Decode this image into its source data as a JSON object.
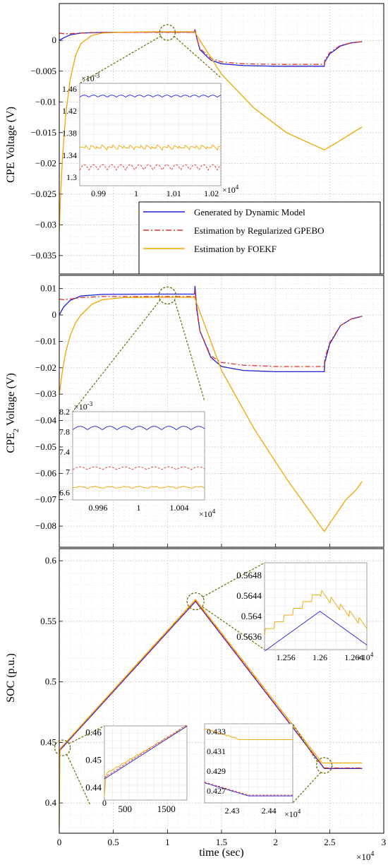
{
  "colors": {
    "generated": "#1f1fd6",
    "gpebo": "#e0302a",
    "foekf": "#f0a500",
    "zoom": "#6b6b00"
  },
  "legend": {
    "generated": "Generated by Dynamic Model",
    "gpebo": "Estimation by Regularized GPEBO",
    "foekf": "Estimation by FOEKF"
  },
  "xaxis": {
    "label": "time (sec)",
    "exponent": "×10",
    "exponent_power": "4",
    "ticks": [
      "0",
      "0.5",
      "1",
      "1.5",
      "2",
      "2.5",
      "3"
    ]
  },
  "chart_data": [
    {
      "type": "line",
      "ylabel": "CPE Voltage (V)",
      "ylim": [
        -0.038,
        0.006
      ],
      "yticks": [
        0,
        -0.005,
        -0.01,
        -0.015,
        -0.02,
        -0.025,
        -0.03,
        -0.035
      ],
      "ytick_labels": [
        "0",
        "−0.005",
        "−0.01",
        "−0.015",
        "−0.02",
        "−0.025",
        "−0.03",
        "−0.035"
      ],
      "xlim": [
        0,
        30000
      ],
      "grid": true,
      "legend_position": "lower-right",
      "series": [
        {
          "name": "Generated by Dynamic Model",
          "x": [
            0,
            400,
            1000,
            2000,
            4000,
            8000,
            12500,
            12550,
            12700,
            13000,
            14000,
            15000,
            17000,
            20000,
            24500,
            24550,
            25000,
            26000,
            27000,
            28000
          ],
          "y": [
            0,
            0.0004,
            0.0009,
            0.0012,
            0.0013,
            0.00135,
            0.00135,
            0.0018,
            0.0005,
            -0.0015,
            -0.0032,
            -0.0038,
            -0.0041,
            -0.0042,
            -0.0042,
            -0.0035,
            -0.0022,
            -0.0009,
            -0.0004,
            -0.0002
          ]
        },
        {
          "name": "Estimation by Regularized GPEBO",
          "x": [
            0,
            400,
            1000,
            2000,
            4000,
            8000,
            12500,
            12550,
            12700,
            13000,
            14000,
            15000,
            17000,
            20000,
            24500,
            24550,
            25000,
            26000,
            27000,
            28000
          ],
          "y": [
            0.0012,
            0.0011,
            0.0011,
            0.0012,
            0.0013,
            0.0013,
            0.0013,
            0.0017,
            0.0004,
            -0.0013,
            -0.0029,
            -0.0035,
            -0.0038,
            -0.0039,
            -0.0039,
            -0.0032,
            -0.002,
            -0.0008,
            -0.0004,
            -0.0002
          ]
        },
        {
          "name": "Estimation by FOEKF",
          "x": [
            0,
            100,
            300,
            600,
            1000,
            1500,
            2000,
            3000,
            4000,
            6000,
            9000,
            12500,
            15000,
            18000,
            21000,
            24500,
            25500,
            26500,
            27500,
            28000
          ],
          "y": [
            -0.031,
            -0.026,
            -0.019,
            -0.012,
            -0.0065,
            -0.0025,
            -0.0005,
            0.0008,
            0.0012,
            0.00135,
            0.0014,
            0.0014,
            -0.0055,
            -0.011,
            -0.015,
            -0.0178,
            -0.0168,
            -0.0157,
            -0.0146,
            -0.0141
          ]
        }
      ],
      "inset": {
        "exponent": "×10",
        "exponent_power": "-3",
        "x_exponent": "×10",
        "x_exponent_power": "4",
        "xlim": [
          0.985,
          1.0225
        ],
        "ylim": [
          1.285,
          1.47
        ],
        "xticks": [
          0.99,
          1,
          1.01,
          1.02
        ],
        "xtick_labels": [
          "0.99",
          "1",
          "1.01",
          "1.02"
        ],
        "yticks": [
          1.3,
          1.34,
          1.38,
          1.42,
          1.46
        ],
        "ytick_labels": [
          "1.3",
          "1.34",
          "1.38",
          "1.42",
          "1.46"
        ],
        "levels": {
          "generated": 1.445,
          "gpebo": 1.313,
          "foekf": 1.352
        },
        "amplitudes": {
          "generated": 0.006,
          "gpebo": 0.005,
          "foekf": 0.003
        }
      }
    },
    {
      "type": "line",
      "ylabel": "CPE",
      "ylabel_sub": "2",
      "ylabel_suffix": " Voltage (V)",
      "ylim": [
        -0.088,
        0.015
      ],
      "yticks": [
        0.01,
        0,
        -0.01,
        -0.02,
        -0.03,
        -0.04,
        -0.05,
        -0.06,
        -0.07,
        -0.08
      ],
      "ytick_labels": [
        "0.01",
        "0",
        "−0.01",
        "−0.02",
        "−0.03",
        "−0.04",
        "−0.05",
        "−0.06",
        "−0.07",
        "−0.08"
      ],
      "xlim": [
        0,
        30000
      ],
      "grid": true,
      "series": [
        {
          "name": "Generated by Dynamic Model",
          "x": [
            0,
            400,
            1000,
            2000,
            4000,
            8000,
            12500,
            12550,
            12700,
            13000,
            14000,
            15000,
            17000,
            20000,
            24500,
            24550,
            25000,
            26000,
            27000,
            28000
          ],
          "y": [
            0,
            0.003,
            0.0055,
            0.0072,
            0.0078,
            0.0079,
            0.0079,
            0.011,
            0.003,
            -0.006,
            -0.016,
            -0.0195,
            -0.021,
            -0.0215,
            -0.0215,
            -0.018,
            -0.011,
            -0.004,
            -0.0015,
            -0.0005
          ]
        },
        {
          "name": "Estimation by Regularized GPEBO",
          "x": [
            0,
            400,
            1000,
            2000,
            4000,
            8000,
            12500,
            12550,
            12700,
            13000,
            14000,
            15000,
            17000,
            20000,
            24500,
            24550,
            25000,
            26000,
            27000,
            28000
          ],
          "y": [
            0.006,
            0.0058,
            0.006,
            0.0066,
            0.007,
            0.007,
            0.007,
            0.0095,
            0.002,
            -0.006,
            -0.0155,
            -0.018,
            -0.019,
            -0.0195,
            -0.0195,
            -0.0165,
            -0.0105,
            -0.004,
            -0.0015,
            -0.0005
          ]
        },
        {
          "name": "Estimation by FOEKF",
          "x": [
            0,
            100,
            300,
            600,
            1000,
            1500,
            2000,
            3000,
            4000,
            6000,
            9000,
            12500,
            15000,
            18000,
            21000,
            24500,
            25500,
            26500,
            27500,
            28000
          ],
          "y": [
            -0.03,
            -0.027,
            -0.021,
            -0.014,
            -0.008,
            -0.003,
            0.0,
            0.004,
            0.0058,
            0.0066,
            0.0067,
            0.0067,
            -0.021,
            -0.043,
            -0.062,
            -0.082,
            -0.076,
            -0.07,
            -0.066,
            -0.063
          ]
        }
      ],
      "inset": {
        "exponent": "×10",
        "exponent_power": "-3",
        "x_exponent": "×10",
        "x_exponent_power": "4",
        "xlim": [
          0.9935,
          1.0065
        ],
        "ylim": [
          6.45,
          8.2
        ],
        "xticks": [
          0.996,
          1,
          1.004
        ],
        "xtick_labels": [
          "0.996",
          "1",
          "1.004"
        ],
        "yticks": [
          6.6,
          7,
          7.4,
          7.8,
          8.2
        ],
        "ytick_labels": [
          "6.6",
          "7",
          "7.4",
          "7.8",
          "8.2"
        ],
        "levels": {
          "generated": 7.84,
          "gpebo": 7.05,
          "foekf": 6.68
        },
        "amplitudes": {
          "generated": 0.04,
          "gpebo": 0.03,
          "foekf": 0.015
        }
      }
    },
    {
      "type": "line",
      "ylabel": "SOC (p.u.)",
      "ylim": [
        0.375,
        0.61
      ],
      "yticks": [
        0.4,
        0.45,
        0.5,
        0.55,
        0.6
      ],
      "ytick_labels": [
        "0.4",
        "0.45",
        "0.5",
        "0.55",
        "0.6"
      ],
      "xlim": [
        0,
        30000
      ],
      "grid": true,
      "series": [
        {
          "name": "Generated by Dynamic Model",
          "x": [
            0,
            12600,
            24500,
            28000
          ],
          "y": [
            0.443,
            0.5665,
            0.4285,
            0.4285
          ]
        },
        {
          "name": "Estimation by Regularized GPEBO",
          "x": [
            0,
            12600,
            24500,
            28000
          ],
          "y": [
            0.4435,
            0.567,
            0.4288,
            0.4288
          ]
        },
        {
          "name": "Estimation by FOEKF",
          "x": [
            0,
            50,
            100,
            12600,
            24300,
            28000
          ],
          "y": [
            0.38,
            0.44,
            0.445,
            0.568,
            0.433,
            0.433
          ]
        }
      ],
      "insets": [
        {
          "id": "peak",
          "x_exponent": "×10",
          "x_exponent_power": "4",
          "xticks": [
            1.256,
            1.26,
            1.264
          ],
          "xtick_labels": [
            "1.256",
            "1.26",
            "1.264"
          ],
          "yticks": [
            0.5636,
            0.564,
            0.5644,
            0.5648
          ],
          "ytick_labels": [
            "0.5636",
            "0.564",
            "0.5644",
            "0.5648"
          ]
        },
        {
          "id": "start",
          "xticks": [
            500,
            1500
          ],
          "xtick_labels": [
            "500",
            "1500"
          ],
          "x_origin_label": "0",
          "yticks": [
            0.44,
            0.45,
            0.46
          ],
          "ytick_labels": [
            "0.44",
            "0.45",
            "0.46"
          ]
        },
        {
          "id": "end",
          "x_exponent": "×10",
          "x_exponent_power": "4",
          "xticks": [
            2.43,
            2.44
          ],
          "xtick_labels": [
            "2.43",
            "2.44"
          ],
          "yticks": [
            0.427,
            0.429,
            0.431,
            0.433
          ],
          "ytick_labels": [
            "0.427",
            "0.429",
            "0.431",
            "0.433"
          ]
        }
      ]
    }
  ]
}
